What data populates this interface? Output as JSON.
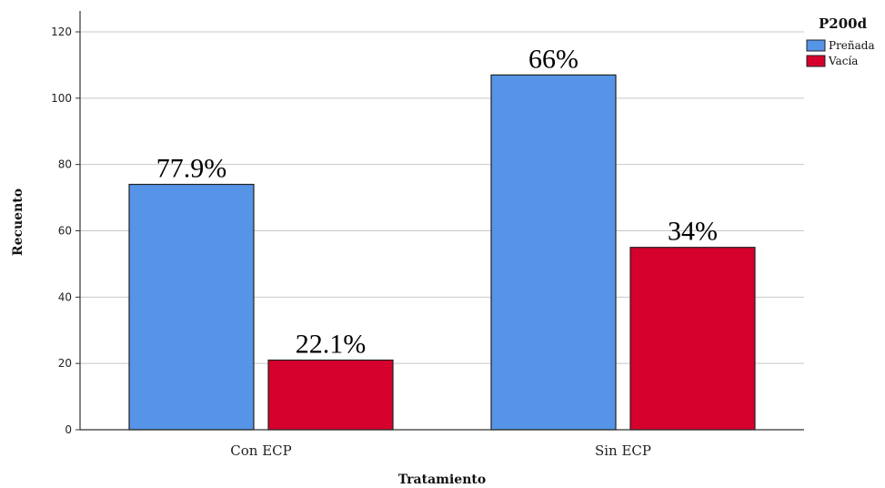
{
  "chart_data": {
    "type": "bar",
    "categories": [
      "Con ECP",
      "Sin ECP"
    ],
    "series": [
      {
        "name": "Preñada",
        "values": [
          74,
          107
        ],
        "labels": [
          "77.9%",
          "66%"
        ]
      },
      {
        "name": "Vacía",
        "values": [
          21,
          55
        ],
        "labels": [
          "22.1%",
          "34%"
        ]
      }
    ],
    "xlabel": "Tratamiento",
    "ylabel": "Recuento",
    "ylim": [
      0,
      120
    ],
    "yticks": [
      0,
      20,
      40,
      60,
      80,
      100,
      120
    ],
    "legend_title": "P200d",
    "legend_position": "top-right",
    "grid": true
  },
  "colors": {
    "series": [
      "#5594e6",
      "#d6002d"
    ],
    "grid": "#c8c8c8",
    "axis": "#333333",
    "bar_stroke": "#222222"
  }
}
